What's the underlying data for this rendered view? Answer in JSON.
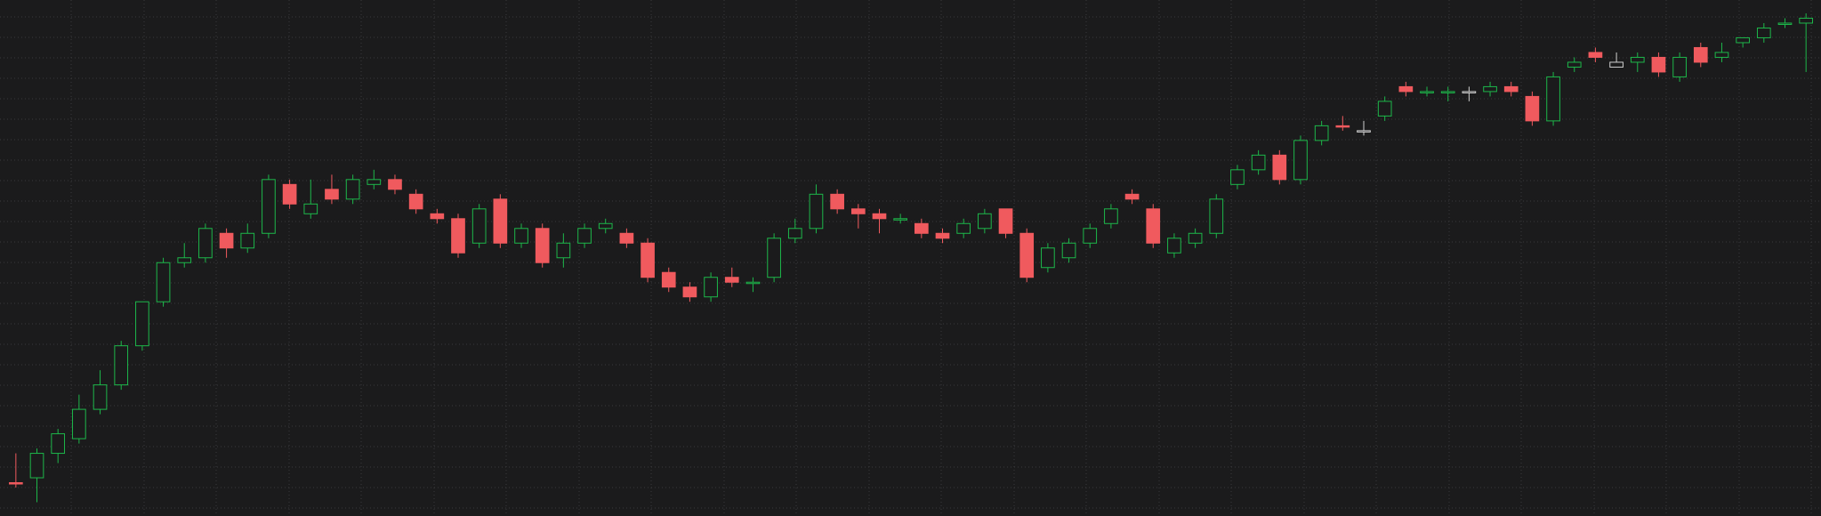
{
  "chart_data": {
    "type": "candlestick",
    "title": "",
    "xlabel": "",
    "ylabel": "",
    "x_ticks": [],
    "y_ticks": [],
    "ylim": [
      0,
      100
    ],
    "grid": true,
    "legend": "none",
    "colors": {
      "background": "#1b1b1c",
      "grid": "#3a3a3b",
      "up": "#1db74a",
      "down": "#f05a5e",
      "doji": "#cfcfcf"
    },
    "series": [
      {
        "candles": [
          {
            "open": 8,
            "close": 8,
            "high": 14,
            "low": 7,
            "color": "down"
          },
          {
            "open": 9,
            "close": 14,
            "high": 15,
            "low": 4,
            "color": "up"
          },
          {
            "open": 14,
            "close": 18,
            "high": 19,
            "low": 12,
            "color": "up"
          },
          {
            "open": 17,
            "close": 23,
            "high": 26,
            "low": 16,
            "color": "up"
          },
          {
            "open": 23,
            "close": 28,
            "high": 31,
            "low": 22,
            "color": "up"
          },
          {
            "open": 28,
            "close": 36,
            "high": 37,
            "low": 27,
            "color": "up"
          },
          {
            "open": 36,
            "close": 45,
            "high": 45,
            "low": 35,
            "color": "up"
          },
          {
            "open": 45,
            "close": 53,
            "high": 54,
            "low": 44,
            "color": "up"
          },
          {
            "open": 53,
            "close": 54,
            "high": 57,
            "low": 52,
            "color": "up"
          },
          {
            "open": 54,
            "close": 60,
            "high": 61,
            "low": 53,
            "color": "up"
          },
          {
            "open": 56,
            "close": 59,
            "high": 60,
            "low": 54,
            "color": "down"
          },
          {
            "open": 56,
            "close": 59,
            "high": 61,
            "low": 55,
            "color": "up"
          },
          {
            "open": 59,
            "close": 70,
            "high": 71,
            "low": 58,
            "color": "up"
          },
          {
            "open": 69,
            "close": 65,
            "high": 70,
            "low": 64,
            "color": "down"
          },
          {
            "open": 63,
            "close": 65,
            "high": 70,
            "low": 62,
            "color": "up"
          },
          {
            "open": 68,
            "close": 66,
            "high": 71,
            "low": 65,
            "color": "down"
          },
          {
            "open": 66,
            "close": 70,
            "high": 71,
            "low": 65,
            "color": "up"
          },
          {
            "open": 70,
            "close": 69,
            "high": 72,
            "low": 68,
            "color": "up"
          },
          {
            "open": 70,
            "close": 68,
            "high": 71,
            "low": 67,
            "color": "down"
          },
          {
            "open": 67,
            "close": 64,
            "high": 68,
            "low": 63,
            "color": "down"
          },
          {
            "open": 63,
            "close": 62,
            "high": 64,
            "low": 61,
            "color": "down"
          },
          {
            "open": 62,
            "close": 55,
            "high": 63,
            "low": 54,
            "color": "down"
          },
          {
            "open": 57,
            "close": 64,
            "high": 65,
            "low": 56,
            "color": "up"
          },
          {
            "open": 66,
            "close": 57,
            "high": 67,
            "low": 56,
            "color": "down"
          },
          {
            "open": 57,
            "close": 60,
            "high": 61,
            "low": 56,
            "color": "up"
          },
          {
            "open": 60,
            "close": 53,
            "high": 61,
            "low": 52,
            "color": "down"
          },
          {
            "open": 54,
            "close": 57,
            "high": 59,
            "low": 52,
            "color": "up"
          },
          {
            "open": 57,
            "close": 60,
            "high": 61,
            "low": 56,
            "color": "up"
          },
          {
            "open": 60,
            "close": 61,
            "high": 62,
            "low": 59,
            "color": "up"
          },
          {
            "open": 59,
            "close": 57,
            "high": 60,
            "low": 56,
            "color": "down"
          },
          {
            "open": 57,
            "close": 50,
            "high": 58,
            "low": 49,
            "color": "down"
          },
          {
            "open": 51,
            "close": 48,
            "high": 52,
            "low": 47,
            "color": "down"
          },
          {
            "open": 48,
            "close": 46,
            "high": 49,
            "low": 45,
            "color": "down"
          },
          {
            "open": 46,
            "close": 50,
            "high": 51,
            "low": 45,
            "color": "up"
          },
          {
            "open": 50,
            "close": 49,
            "high": 52,
            "low": 48,
            "color": "down"
          },
          {
            "open": 49,
            "close": 49,
            "high": 50,
            "low": 47,
            "color": "up"
          },
          {
            "open": 50,
            "close": 58,
            "high": 59,
            "low": 49,
            "color": "up"
          },
          {
            "open": 58,
            "close": 60,
            "high": 62,
            "low": 57,
            "color": "up"
          },
          {
            "open": 60,
            "close": 67,
            "high": 69,
            "low": 59,
            "color": "up"
          },
          {
            "open": 67,
            "close": 64,
            "high": 68,
            "low": 63,
            "color": "down"
          },
          {
            "open": 64,
            "close": 63,
            "high": 65,
            "low": 60,
            "color": "down"
          },
          {
            "open": 63,
            "close": 62,
            "high": 64,
            "low": 59,
            "color": "down"
          },
          {
            "open": 62,
            "close": 62,
            "high": 63,
            "low": 61,
            "color": "up"
          },
          {
            "open": 61,
            "close": 59,
            "high": 62,
            "low": 58,
            "color": "down"
          },
          {
            "open": 59,
            "close": 58,
            "high": 60,
            "low": 57,
            "color": "down"
          },
          {
            "open": 59,
            "close": 61,
            "high": 62,
            "low": 58,
            "color": "up"
          },
          {
            "open": 60,
            "close": 63,
            "high": 64,
            "low": 59,
            "color": "up"
          },
          {
            "open": 64,
            "close": 59,
            "high": 64,
            "low": 58,
            "color": "down"
          },
          {
            "open": 59,
            "close": 50,
            "high": 60,
            "low": 49,
            "color": "down"
          },
          {
            "open": 52,
            "close": 56,
            "high": 57,
            "low": 51,
            "color": "up"
          },
          {
            "open": 54,
            "close": 57,
            "high": 58,
            "low": 53,
            "color": "up"
          },
          {
            "open": 57,
            "close": 60,
            "high": 61,
            "low": 56,
            "color": "up"
          },
          {
            "open": 61,
            "close": 64,
            "high": 65,
            "low": 60,
            "color": "up"
          },
          {
            "open": 67,
            "close": 66,
            "high": 68,
            "low": 65,
            "color": "down"
          },
          {
            "open": 64,
            "close": 57,
            "high": 65,
            "low": 56,
            "color": "down"
          },
          {
            "open": 55,
            "close": 58,
            "high": 59,
            "low": 54,
            "color": "up"
          },
          {
            "open": 57,
            "close": 59,
            "high": 60,
            "low": 56,
            "color": "up"
          },
          {
            "open": 59,
            "close": 66,
            "high": 67,
            "low": 58,
            "color": "up"
          },
          {
            "open": 69,
            "close": 72,
            "high": 73,
            "low": 68,
            "color": "up"
          },
          {
            "open": 72,
            "close": 75,
            "high": 76,
            "low": 71,
            "color": "up"
          },
          {
            "open": 75,
            "close": 70,
            "high": 76,
            "low": 69,
            "color": "down"
          },
          {
            "open": 70,
            "close": 78,
            "high": 79,
            "low": 69,
            "color": "up"
          },
          {
            "open": 78,
            "close": 81,
            "high": 82,
            "low": 77,
            "color": "up"
          },
          {
            "open": 81,
            "close": 81,
            "high": 83,
            "low": 80,
            "color": "down"
          },
          {
            "open": 80,
            "close": 80,
            "high": 82,
            "low": 79,
            "color": "doji"
          },
          {
            "open": 83,
            "close": 86,
            "high": 87,
            "low": 82,
            "color": "up"
          },
          {
            "open": 88,
            "close": 89,
            "high": 90,
            "low": 87,
            "color": "down"
          },
          {
            "open": 88,
            "close": 88,
            "high": 89,
            "low": 87,
            "color": "up"
          },
          {
            "open": 88,
            "close": 88,
            "high": 89,
            "low": 86,
            "color": "up"
          },
          {
            "open": 88,
            "close": 88,
            "high": 89,
            "low": 86,
            "color": "doji"
          },
          {
            "open": 88,
            "close": 89,
            "high": 90,
            "low": 87,
            "color": "up"
          },
          {
            "open": 89,
            "close": 88,
            "high": 90,
            "low": 87,
            "color": "down"
          },
          {
            "open": 87,
            "close": 82,
            "high": 88,
            "low": 81,
            "color": "down"
          },
          {
            "open": 82,
            "close": 91,
            "high": 92,
            "low": 81,
            "color": "up"
          },
          {
            "open": 93,
            "close": 94,
            "high": 95,
            "low": 92,
            "color": "up"
          },
          {
            "open": 96,
            "close": 95,
            "high": 97,
            "low": 94,
            "color": "down"
          },
          {
            "open": 93,
            "close": 94,
            "high": 96,
            "low": 93,
            "color": "doji"
          },
          {
            "open": 94,
            "close": 95,
            "high": 96,
            "low": 92,
            "color": "up"
          },
          {
            "open": 95,
            "close": 92,
            "high": 96,
            "low": 91,
            "color": "down"
          },
          {
            "open": 91,
            "close": 95,
            "high": 96,
            "low": 90,
            "color": "up"
          },
          {
            "open": 97,
            "close": 94,
            "high": 98,
            "low": 93,
            "color": "down"
          },
          {
            "open": 95,
            "close": 96,
            "high": 98,
            "low": 94,
            "color": "up"
          },
          {
            "open": 98,
            "close": 99,
            "high": 99,
            "low": 97,
            "color": "up"
          },
          {
            "open": 99,
            "close": 101,
            "high": 102,
            "low": 98,
            "color": "up"
          },
          {
            "open": 102,
            "close": 102,
            "high": 103,
            "low": 101,
            "color": "up"
          },
          {
            "open": 102,
            "close": 103,
            "high": 104,
            "low": 92,
            "color": "up"
          }
        ]
      }
    ]
  }
}
